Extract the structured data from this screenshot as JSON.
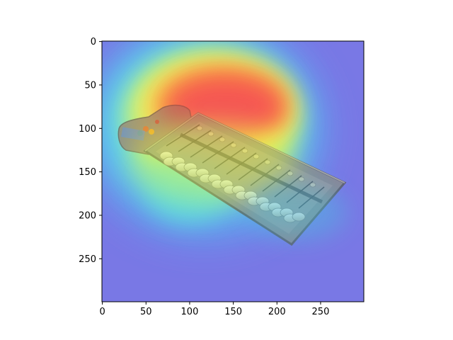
{
  "colors": {
    "background": "#ffffff",
    "axes_frame": "#000000",
    "photo_backdrop": "#b4b0a8",
    "abacus_body": "#8a8a88",
    "beads": "#e8e4d8",
    "heatmap_palette": "jet"
  },
  "figure": {
    "content": "grad-cam heatmap overlay on photo of toy abacus",
    "x_axis": {
      "ticks": [
        "0",
        "50",
        "100",
        "150",
        "200",
        "250"
      ],
      "range": [
        0,
        299
      ]
    },
    "y_axis": {
      "ticks": [
        "0",
        "50",
        "100",
        "150",
        "200",
        "250"
      ],
      "range": [
        0,
        299
      ],
      "inverted": true
    }
  }
}
